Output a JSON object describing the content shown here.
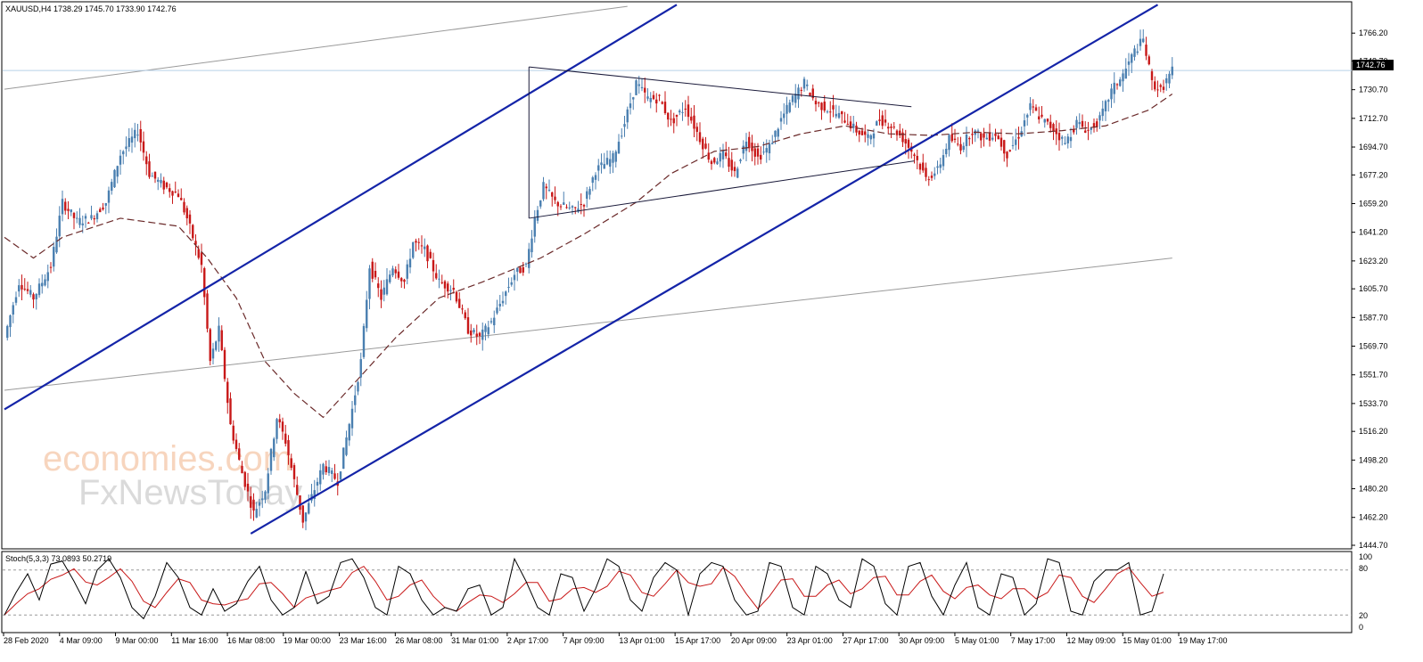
{
  "symbol_header": "XAUUSD,H4  1738.29 1745.70 1733.90 1742.76",
  "current_price_label": "1742.76",
  "stoch_header": "Stoch(5,3,3) 73.0893 50.2719",
  "watermark": {
    "line1": "economies.com",
    "line2": "FxNewsToday"
  },
  "colors": {
    "bull": "#4a7fb0",
    "bear": "#c81818",
    "channel": "#1424a8",
    "ma": "#6b2a2a",
    "stoch_main": "#000000",
    "stoch_signal": "#c81818",
    "price_line": "#b8d0e8"
  },
  "chart_data": {
    "type": "candlestick",
    "y_range": [
      1444.7,
      1784.2
    ],
    "y_ticks": [
      "1766.20",
      "1748.70",
      "1730.70",
      "1712.70",
      "1694.70",
      "1677.20",
      "1659.20",
      "1641.20",
      "1623.20",
      "1605.70",
      "1587.70",
      "1569.70",
      "1551.70",
      "1533.70",
      "1516.20",
      "1498.20",
      "1480.20",
      "1462.20",
      "1444.70"
    ],
    "x_labels": [
      "28 Feb 2020",
      "4 Mar 09:00",
      "9 Mar 00:00",
      "11 Mar 16:00",
      "16 Mar 08:00",
      "19 Mar 00:00",
      "23 Mar 16:00",
      "26 Mar 08:00",
      "31 Mar 01:00",
      "2 Apr 17:00",
      "7 Apr 09:00",
      "13 Apr 01:00",
      "15 Apr 17:00",
      "20 Apr 09:00",
      "23 Apr 01:00",
      "27 Apr 17:00",
      "30 Apr 09:00",
      "5 May 01:00",
      "7 May 17:00",
      "12 May 09:00",
      "15 May 01:00",
      "19 May 17:00"
    ],
    "price_path": [
      [
        0,
        1575
      ],
      [
        5,
        1610
      ],
      [
        10,
        1600
      ],
      [
        16,
        1620
      ],
      [
        20,
        1660
      ],
      [
        25,
        1648
      ],
      [
        30,
        1650
      ],
      [
        35,
        1660
      ],
      [
        40,
        1690
      ],
      [
        46,
        1705
      ],
      [
        50,
        1678
      ],
      [
        55,
        1670
      ],
      [
        60,
        1665
      ],
      [
        63,
        1650
      ],
      [
        68,
        1620
      ],
      [
        71,
        1560
      ],
      [
        74,
        1580
      ],
      [
        78,
        1520
      ],
      [
        82,
        1490
      ],
      [
        86,
        1465
      ],
      [
        90,
        1480
      ],
      [
        94,
        1525
      ],
      [
        97,
        1510
      ],
      [
        100,
        1485
      ],
      [
        103,
        1460
      ],
      [
        107,
        1480
      ],
      [
        110,
        1495
      ],
      [
        115,
        1485
      ],
      [
        120,
        1530
      ],
      [
        123,
        1560
      ],
      [
        126,
        1620
      ],
      [
        130,
        1600
      ],
      [
        134,
        1620
      ],
      [
        138,
        1610
      ],
      [
        141,
        1635
      ],
      [
        145,
        1630
      ],
      [
        150,
        1610
      ],
      [
        155,
        1605
      ],
      [
        160,
        1580
      ],
      [
        164,
        1575
      ],
      [
        168,
        1585
      ],
      [
        172,
        1600
      ],
      [
        176,
        1615
      ],
      [
        180,
        1620
      ],
      [
        183,
        1650
      ],
      [
        186,
        1670
      ],
      [
        190,
        1660
      ],
      [
        196,
        1655
      ],
      [
        200,
        1660
      ],
      [
        204,
        1680
      ],
      [
        210,
        1688
      ],
      [
        214,
        1710
      ],
      [
        218,
        1735
      ],
      [
        222,
        1725
      ],
      [
        226,
        1725
      ],
      [
        230,
        1710
      ],
      [
        235,
        1720
      ],
      [
        240,
        1700
      ],
      [
        244,
        1685
      ],
      [
        248,
        1690
      ],
      [
        252,
        1678
      ],
      [
        256,
        1700
      ],
      [
        260,
        1688
      ],
      [
        264,
        1695
      ],
      [
        268,
        1712
      ],
      [
        272,
        1725
      ],
      [
        276,
        1735
      ],
      [
        280,
        1722
      ],
      [
        285,
        1718
      ],
      [
        290,
        1712
      ],
      [
        294,
        1705
      ],
      [
        298,
        1700
      ],
      [
        302,
        1712
      ],
      [
        306,
        1708
      ],
      [
        310,
        1700
      ],
      [
        314,
        1690
      ],
      [
        318,
        1675
      ],
      [
        322,
        1680
      ],
      [
        326,
        1700
      ],
      [
        330,
        1695
      ],
      [
        334,
        1705
      ],
      [
        338,
        1700
      ],
      [
        342,
        1703
      ],
      [
        346,
        1690
      ],
      [
        350,
        1702
      ],
      [
        354,
        1720
      ],
      [
        358,
        1712
      ],
      [
        362,
        1706
      ],
      [
        366,
        1697
      ],
      [
        370,
        1710
      ],
      [
        374,
        1705
      ],
      [
        378,
        1712
      ],
      [
        382,
        1730
      ],
      [
        386,
        1740
      ],
      [
        390,
        1755
      ],
      [
        393,
        1762
      ],
      [
        396,
        1735
      ],
      [
        399,
        1730
      ],
      [
        403,
        1743
      ]
    ],
    "moving_average": [
      [
        0,
        1638
      ],
      [
        10,
        1625
      ],
      [
        20,
        1638
      ],
      [
        40,
        1650
      ],
      [
        60,
        1645
      ],
      [
        70,
        1625
      ],
      [
        80,
        1600
      ],
      [
        90,
        1560
      ],
      [
        100,
        1540
      ],
      [
        110,
        1525
      ],
      [
        120,
        1545
      ],
      [
        135,
        1575
      ],
      [
        150,
        1600
      ],
      [
        165,
        1610
      ],
      [
        185,
        1625
      ],
      [
        200,
        1640
      ],
      [
        218,
        1660
      ],
      [
        230,
        1678
      ],
      [
        245,
        1692
      ],
      [
        260,
        1695
      ],
      [
        275,
        1703
      ],
      [
        290,
        1708
      ],
      [
        305,
        1703
      ],
      [
        320,
        1702
      ],
      [
        335,
        1704
      ],
      [
        350,
        1703
      ],
      [
        365,
        1705
      ],
      [
        380,
        1708
      ],
      [
        395,
        1718
      ],
      [
        403,
        1728
      ]
    ],
    "stochastic": {
      "range": [
        0,
        100
      ],
      "levels": [
        20,
        80
      ],
      "main_last": 73.0893,
      "signal_last": 50.2719,
      "main": [
        20,
        50,
        75,
        40,
        88,
        92,
        65,
        35,
        80,
        95,
        70,
        30,
        15,
        45,
        90,
        70,
        30,
        20,
        55,
        25,
        35,
        65,
        85,
        40,
        20,
        30,
        78,
        35,
        45,
        90,
        95,
        70,
        30,
        20,
        85,
        75,
        40,
        20,
        30,
        25,
        55,
        60,
        20,
        30,
        95,
        65,
        30,
        20,
        75,
        70,
        25,
        55,
        95,
        85,
        40,
        25,
        70,
        90,
        80,
        20,
        75,
        90,
        85,
        40,
        20,
        25,
        90,
        85,
        30,
        20,
        85,
        75,
        40,
        30,
        95,
        85,
        35,
        20,
        85,
        90,
        45,
        20,
        60,
        90,
        30,
        20,
        75,
        70,
        20,
        35,
        95,
        90,
        25,
        20,
        65,
        80,
        80,
        90,
        20,
        25,
        75
      ],
      "x_step_bar": 4
    },
    "lines": [
      {
        "name": "channel-upper",
        "from": [
          0,
          1530
        ],
        "to": [
          232,
          1784
        ]
      },
      {
        "name": "channel-lower",
        "from": [
          85,
          1452
        ],
        "to": [
          398,
          1784
        ]
      },
      {
        "name": "triangle-top",
        "from": [
          181,
          1745
        ],
        "to": [
          313,
          1720
        ]
      },
      {
        "name": "triangle-bottom",
        "from": [
          181,
          1650
        ],
        "to": [
          314,
          1686
        ]
      },
      {
        "name": "triangle-left",
        "from": [
          181,
          1650
        ],
        "to": [
          181,
          1745
        ]
      },
      {
        "name": "trend-top-gray",
        "from": [
          0,
          1731
        ],
        "to": [
          215,
          1783
        ]
      },
      {
        "name": "trend-mid-gray",
        "from": [
          0,
          1542
        ],
        "to": [
          403,
          1625
        ]
      }
    ],
    "horizontal_line": 1742.76
  }
}
